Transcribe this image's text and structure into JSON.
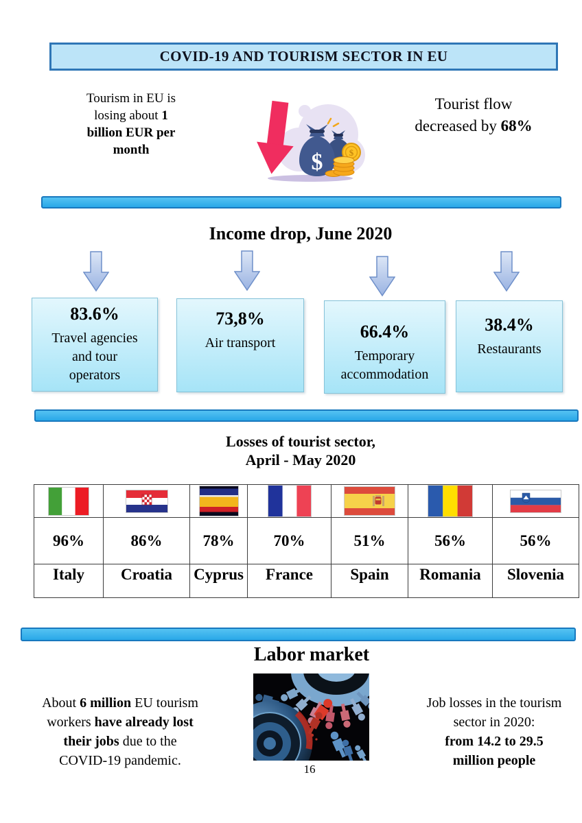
{
  "header": {
    "title": "COVID-19 AND TOURISM SECTOR IN EU"
  },
  "overview": {
    "left_lines": [
      [
        {
          "t": "Tourism in EU is"
        }
      ],
      [
        {
          "t": "losing about "
        },
        {
          "t": "1",
          "b": true
        }
      ],
      [
        {
          "t": "billion EUR per",
          "b": true
        }
      ],
      [
        {
          "t": "month",
          "b": true
        }
      ]
    ],
    "right_lines": [
      [
        {
          "t": "Tourist flow"
        }
      ],
      [
        {
          "t": "decreased by "
        },
        {
          "t": "68%",
          "b": true
        }
      ]
    ]
  },
  "income": {
    "heading": "Income drop, June 2020",
    "items": [
      {
        "value": "83.6%",
        "label_lines": [
          "Travel agencies",
          "and tour",
          "operators"
        ]
      },
      {
        "value": "73,8%",
        "label_lines": [
          "Air transport"
        ]
      },
      {
        "value": "66.4%",
        "label_lines": [
          "Temporary",
          "accommodation"
        ]
      },
      {
        "value": "38.4%",
        "label_lines": [
          "Restaurants"
        ]
      }
    ]
  },
  "losses": {
    "heading_lines": [
      "Losses of tourist sector,",
      "April - May 2020"
    ],
    "countries": [
      {
        "name": "Italy",
        "name_lines": [
          "Italy"
        ],
        "value": "96%",
        "flag": "italy-flag"
      },
      {
        "name": "Croatia",
        "name_lines": [
          "Croatia"
        ],
        "value": "86%",
        "flag": "croatia-flag"
      },
      {
        "name": "Cyprus",
        "name_lines": [
          "Cypr",
          "us"
        ],
        "value": "78%",
        "flag": "cyprus-flag"
      },
      {
        "name": "France",
        "name_lines": [
          "France"
        ],
        "value": "70%",
        "flag": "france-flag"
      },
      {
        "name": "Spain",
        "name_lines": [
          "Spain"
        ],
        "value": "51%",
        "flag": "spain-flag"
      },
      {
        "name": "Romania",
        "name_lines": [
          "Romania"
        ],
        "value": "56%",
        "flag": "romania-flag"
      },
      {
        "name": "Slovenia",
        "name_lines": [
          "Slovenia"
        ],
        "value": "56%",
        "flag": "slovenia-flag"
      }
    ]
  },
  "labor": {
    "heading": "Labor market",
    "left_lines": [
      [
        {
          "t": "About "
        },
        {
          "t": "6 million",
          "b": true
        },
        {
          "t": " EU tourism"
        }
      ],
      [
        {
          "t": "workers "
        },
        {
          "t": "have already lost",
          "b": true
        }
      ],
      [
        {
          "t": "their jobs",
          "b": true
        },
        {
          "t": " due to the"
        }
      ],
      [
        {
          "t": "COVID-19 pandemic."
        }
      ]
    ],
    "right_lines": [
      [
        {
          "t": "Job losses in the tourism"
        }
      ],
      [
        {
          "t": "sector in 2020:"
        }
      ],
      [
        {
          "t": "from 14.2 to 29.5",
          "b": true
        }
      ],
      [
        {
          "t": "million people",
          "b": true
        }
      ]
    ]
  },
  "footer": {
    "page_number": "16"
  },
  "colors": {
    "separator_fill": "#29A8E8",
    "separator_border": "#1878BE",
    "title_box_fill": "#BCE4F8",
    "title_box_border": "#2F76B6",
    "panel_fill_top": "#E3F7FD",
    "panel_fill_bottom": "#A6E4F7",
    "arrow_fill": "#AFC4E8",
    "arrow_border": "#6E8FC9",
    "money_arrow_pink": "#F02D5F",
    "money_bag_navy": "#41598F",
    "coin_gold": "#F6A81C"
  }
}
